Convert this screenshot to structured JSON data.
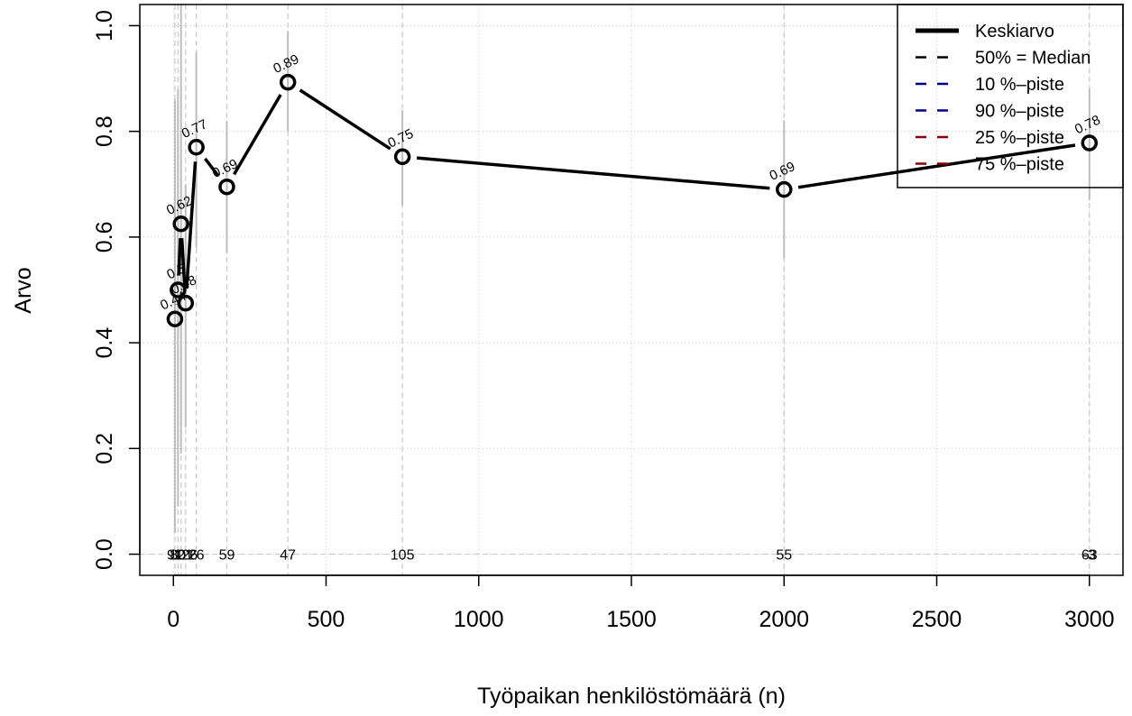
{
  "chart_data": {
    "type": "line",
    "title": "",
    "xlabel": "Työpaikan henkilöstömäärä (n)",
    "ylabel": "Arvo",
    "xlim": [
      -110,
      3110
    ],
    "ylim": [
      -0.04,
      1.04
    ],
    "x_ticks": [
      0,
      500,
      1000,
      1500,
      2000,
      2500,
      3000
    ],
    "x_tick_labels": [
      "0",
      "500",
      "1000",
      "1500",
      "2000",
      "2500",
      "3000"
    ],
    "y_ticks": [
      0.0,
      0.2,
      0.4,
      0.6,
      0.8,
      1.0
    ],
    "y_tick_labels": [
      "0.0",
      "0.2",
      "0.4",
      "0.6",
      "0.8",
      "1.0"
    ],
    "grid": true,
    "legend_position": "top-right",
    "legend": [
      {
        "label": "Keskiarvo",
        "color": "#000000",
        "style": "solid"
      },
      {
        "label": "50% = Median",
        "color": "#000000",
        "style": "dashed"
      },
      {
        "label": "10 %–piste",
        "color": "#00008B",
        "style": "dashed"
      },
      {
        "label": "90 %–piste",
        "color": "#00008B",
        "style": "dashed"
      },
      {
        "label": "25 %–piste",
        "color": "#8B0000",
        "style": "dashed"
      },
      {
        "label": "75 %–piste",
        "color": "#8B0000",
        "style": "dashed"
      }
    ],
    "series": [
      {
        "name": "Keskiarvo",
        "x": [
          5,
          15,
          25,
          40,
          75,
          175,
          375,
          750,
          2000,
          3000
        ],
        "y": [
          0.445,
          0.5,
          0.625,
          0.475,
          0.77,
          0.695,
          0.893,
          0.752,
          0.69,
          0.778
        ],
        "point_labels": [
          "0.44",
          "0.5",
          "0.62",
          "0.48",
          "0.77",
          "0.69",
          "0.89",
          "0.75",
          "0.69",
          "0.78"
        ],
        "counts": [
          "91",
          "80",
          "121",
          "126",
          "26",
          "59",
          "47",
          "105",
          "55",
          "63"
        ],
        "range_low": [
          0.04,
          0.09,
          0.19,
          0.24,
          0.58,
          0.57,
          0.8,
          0.66,
          0.56,
          0.67
        ],
        "range_high": [
          0.86,
          0.88,
          1.04,
          0.7,
          0.95,
          0.82,
          0.99,
          0.84,
          0.82,
          0.88
        ]
      }
    ],
    "overflow_label": "-3"
  },
  "colors": {
    "range_line": "#bdbdbd",
    "grid": "#c8c8c8",
    "axis": "#000000"
  }
}
